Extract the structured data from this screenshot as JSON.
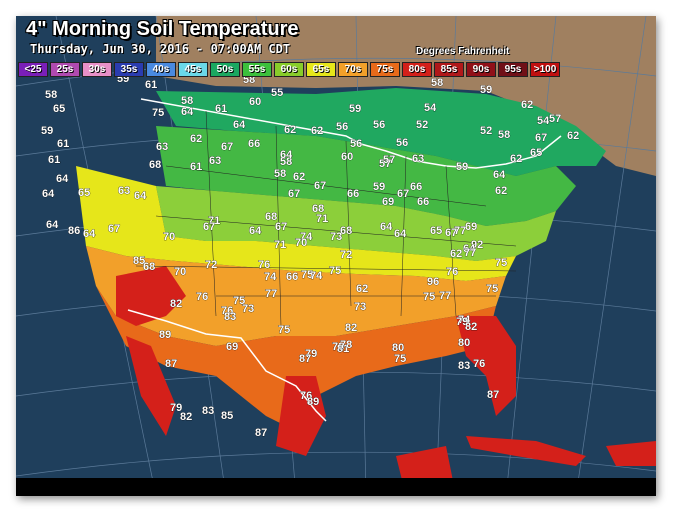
{
  "header": {
    "title": "4\" Morning Soil Temperature",
    "subtitle": "Thursday, Jun 30, 2016 - 07:00AM CDT",
    "units": "Degrees Fahrenheit"
  },
  "legend": [
    {
      "label": "<25",
      "color": "#7a1fb8"
    },
    {
      "label": "25s",
      "color": "#b04ab0"
    },
    {
      "label": "30s",
      "color": "#e890c8"
    },
    {
      "label": "35s",
      "color": "#2a3cb0"
    },
    {
      "label": "40s",
      "color": "#4a8ae0"
    },
    {
      "label": "45s",
      "color": "#6ad8e8"
    },
    {
      "label": "50s",
      "color": "#1aa860"
    },
    {
      "label": "55s",
      "color": "#3cc03c"
    },
    {
      "label": "60s",
      "color": "#88cc2a"
    },
    {
      "label": "65s",
      "color": "#e6e61a"
    },
    {
      "label": "70s",
      "color": "#f2a02a"
    },
    {
      "label": "75s",
      "color": "#e86a1a"
    },
    {
      "label": "80s",
      "color": "#d4201a"
    },
    {
      "label": "85s",
      "color": "#b0181a"
    },
    {
      "label": "90s",
      "color": "#901018"
    },
    {
      "label": "95s",
      "color": "#701018"
    },
    {
      "label": ">100",
      "color": "#c01010"
    }
  ],
  "colors": {
    "ocean": "#1f3f5c",
    "land_outside": "#a08060",
    "greenish_north": "#20a860",
    "green": "#44b844",
    "lightgreen": "#8ccf3a",
    "yellow": "#e6e61a",
    "orange": "#f2a02a",
    "darkorange": "#e86a1a",
    "red": "#d4201a",
    "boundary": "#ffffff"
  },
  "readings": [
    {
      "value": "59"
    },
    {
      "value": "61"
    },
    {
      "value": "58"
    },
    {
      "value": "58"
    },
    {
      "value": "55"
    },
    {
      "value": "58"
    },
    {
      "value": "59"
    },
    {
      "value": "54"
    },
    {
      "value": "65"
    },
    {
      "value": "60"
    },
    {
      "value": "58"
    },
    {
      "value": "75"
    },
    {
      "value": "64"
    },
    {
      "value": "62"
    },
    {
      "value": "61"
    },
    {
      "value": "59"
    },
    {
      "value": "54"
    },
    {
      "value": "57"
    },
    {
      "value": "56"
    },
    {
      "value": "56"
    },
    {
      "value": "64"
    },
    {
      "value": "62"
    },
    {
      "value": "62"
    },
    {
      "value": "56"
    },
    {
      "value": "52"
    },
    {
      "value": "52"
    },
    {
      "value": "58"
    },
    {
      "value": "67"
    },
    {
      "value": "62"
    },
    {
      "value": "59"
    },
    {
      "value": "61"
    },
    {
      "value": "63"
    },
    {
      "value": "62"
    },
    {
      "value": "67"
    },
    {
      "value": "66"
    },
    {
      "value": "65"
    },
    {
      "value": "56"
    },
    {
      "value": "63"
    },
    {
      "value": "57"
    },
    {
      "value": "61"
    },
    {
      "value": "62"
    },
    {
      "value": "59"
    },
    {
      "value": "58"
    },
    {
      "value": "61"
    },
    {
      "value": "63"
    },
    {
      "value": "64"
    },
    {
      "value": "60"
    },
    {
      "value": "57"
    },
    {
      "value": "62"
    },
    {
      "value": "68"
    },
    {
      "value": "58"
    },
    {
      "value": "64"
    },
    {
      "value": "59"
    },
    {
      "value": "66"
    },
    {
      "value": "67"
    },
    {
      "value": "62"
    },
    {
      "value": "64"
    },
    {
      "value": "63"
    },
    {
      "value": "65"
    },
    {
      "value": "64"
    },
    {
      "value": "64"
    },
    {
      "value": "67"
    },
    {
      "value": "66"
    },
    {
      "value": "67"
    },
    {
      "value": "69"
    },
    {
      "value": "66"
    },
    {
      "value": "68"
    },
    {
      "value": "71"
    },
    {
      "value": "67"
    },
    {
      "value": "64"
    },
    {
      "value": "86"
    },
    {
      "value": "64"
    },
    {
      "value": "70"
    },
    {
      "value": "67"
    },
    {
      "value": "67"
    },
    {
      "value": "64"
    },
    {
      "value": "68"
    },
    {
      "value": "71"
    },
    {
      "value": "68"
    },
    {
      "value": "64"
    },
    {
      "value": "65"
    },
    {
      "value": "67"
    },
    {
      "value": "69"
    },
    {
      "value": "77"
    },
    {
      "value": "92"
    },
    {
      "value": "74"
    },
    {
      "value": "70"
    },
    {
      "value": "73"
    },
    {
      "value": "71"
    },
    {
      "value": "72"
    },
    {
      "value": "64"
    },
    {
      "value": "62"
    },
    {
      "value": "64"
    },
    {
      "value": "77"
    },
    {
      "value": "75"
    },
    {
      "value": "85"
    },
    {
      "value": "68"
    },
    {
      "value": "70"
    },
    {
      "value": "72"
    },
    {
      "value": "76"
    },
    {
      "value": "74"
    },
    {
      "value": "75"
    },
    {
      "value": "74"
    },
    {
      "value": "75"
    },
    {
      "value": "66"
    },
    {
      "value": "62"
    },
    {
      "value": "76"
    },
    {
      "value": "75"
    },
    {
      "value": "96"
    },
    {
      "value": "82"
    },
    {
      "value": "76"
    },
    {
      "value": "75"
    },
    {
      "value": "73"
    },
    {
      "value": "77"
    },
    {
      "value": "77"
    },
    {
      "value": "75"
    },
    {
      "value": "73"
    },
    {
      "value": "76"
    },
    {
      "value": "74"
    },
    {
      "value": "83"
    },
    {
      "value": "82"
    },
    {
      "value": "75"
    },
    {
      "value": "78"
    },
    {
      "value": "81"
    },
    {
      "value": "89"
    },
    {
      "value": "69"
    },
    {
      "value": "79"
    },
    {
      "value": "78"
    },
    {
      "value": "80"
    },
    {
      "value": "75"
    },
    {
      "value": "79"
    },
    {
      "value": "82"
    },
    {
      "value": "80"
    },
    {
      "value": "87"
    },
    {
      "value": "83"
    },
    {
      "value": "87"
    },
    {
      "value": "76"
    },
    {
      "value": "87"
    },
    {
      "value": "83"
    },
    {
      "value": "85"
    },
    {
      "value": "87"
    },
    {
      "value": "76"
    },
    {
      "value": "89"
    },
    {
      "value": "79"
    },
    {
      "value": "82"
    }
  ]
}
